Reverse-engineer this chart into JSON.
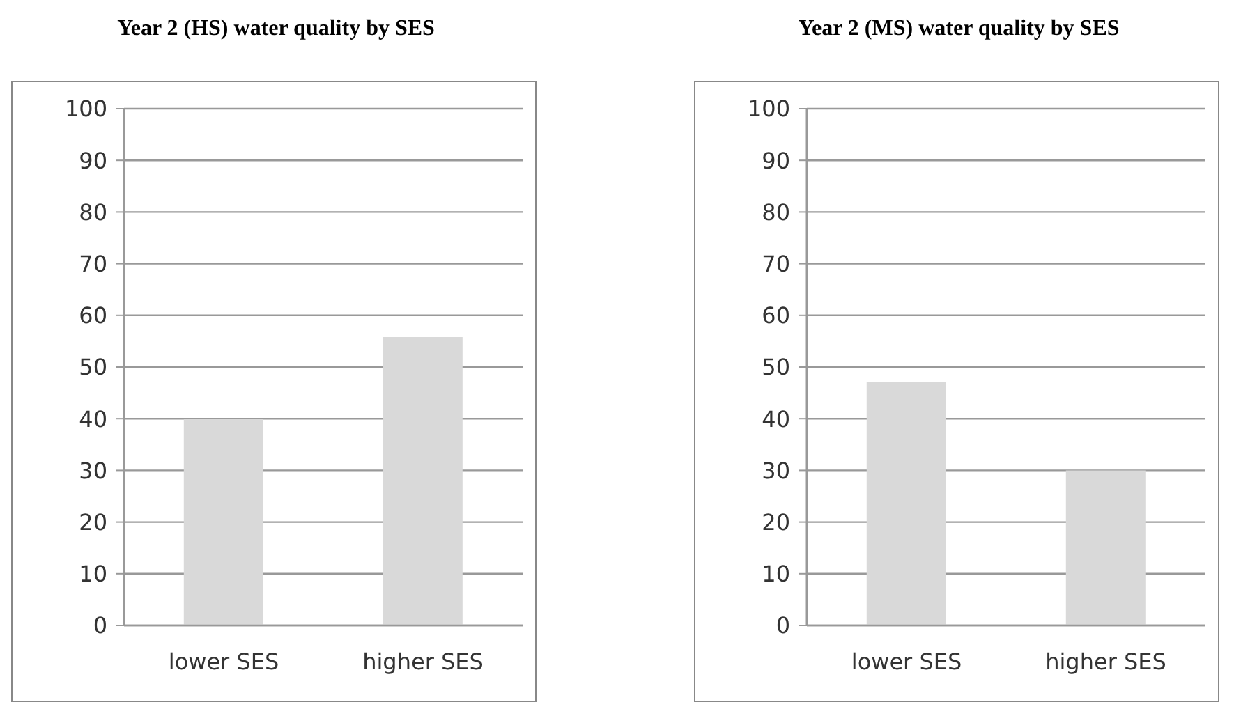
{
  "chart_data": [
    {
      "type": "bar",
      "title": "Year 2 (HS) water quality by SES",
      "categories": [
        "lower SES",
        "higher SES"
      ],
      "values": [
        40,
        55.8
      ],
      "color": "#d9d9d9",
      "ylim": [
        0,
        100
      ],
      "yticks": [
        0,
        10,
        20,
        30,
        40,
        50,
        60,
        70,
        80,
        90,
        100
      ],
      "grid": "y"
    },
    {
      "type": "bar",
      "title": "Year 2 (MS) water quality by SES",
      "categories": [
        "lower SES",
        "higher SES"
      ],
      "values": [
        47.1,
        30
      ],
      "color": "#d9d9d9",
      "ylim": [
        0,
        100
      ],
      "yticks": [
        0,
        10,
        20,
        30,
        40,
        50,
        60,
        70,
        80,
        90,
        100
      ],
      "grid": "y"
    }
  ]
}
